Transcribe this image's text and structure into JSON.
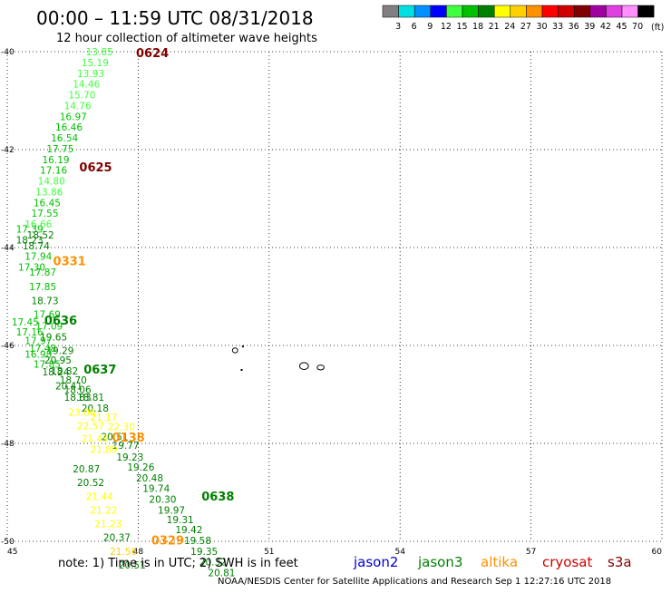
{
  "header": {
    "time_range": "00:00 – 11:59 UTC 08/31/2018",
    "subtitle": "12 hour collection of altimeter wave heights"
  },
  "legend": {
    "unit": "(ft)",
    "bins": [
      {
        "label": "3",
        "color": "#808080"
      },
      {
        "label": "6",
        "color": "#00e0e0"
      },
      {
        "label": "9",
        "color": "#0090ff"
      },
      {
        "label": "12",
        "color": "#0000ff"
      },
      {
        "label": "15",
        "color": "#40ff40"
      },
      {
        "label": "18",
        "color": "#00c000"
      },
      {
        "label": "21",
        "color": "#008000"
      },
      {
        "label": "24",
        "color": "#ffff00"
      },
      {
        "label": "27",
        "color": "#ffd000"
      },
      {
        "label": "30",
        "color": "#ff9000"
      },
      {
        "label": "33",
        "color": "#ff0000"
      },
      {
        "label": "36",
        "color": "#d00000"
      },
      {
        "label": "39",
        "color": "#800000"
      },
      {
        "label": "42",
        "color": "#a000a0"
      },
      {
        "label": "45",
        "color": "#e040e0"
      },
      {
        "label": "70",
        "color": "#ff90ff"
      },
      {
        "label": "",
        "color": "#000000"
      }
    ]
  },
  "footer": {
    "note": "note: 1) Time is in UTC; 2) SWH is in feet",
    "satellites": [
      {
        "name": "jason2",
        "color": "#0000d0"
      },
      {
        "name": "jason3",
        "color": "#008000"
      },
      {
        "name": "altika",
        "color": "#ff9000"
      },
      {
        "name": "cryosat",
        "color": "#d00000"
      },
      {
        "name": "s3a",
        "color": "#800000"
      }
    ],
    "credit": "NOAA/NESDIS Center for Satellite Applications and Research   Sep  1 12:27:16 UTC 2018"
  },
  "chart_data": {
    "type": "scatter",
    "xlim": [
      45,
      60
    ],
    "ylim": [
      -50,
      -40
    ],
    "x_ticks": [
      45,
      48,
      51,
      54,
      57,
      60
    ],
    "y_ticks": [
      -40,
      -42,
      -44,
      -46,
      -48,
      -50
    ],
    "grid": true,
    "time_labels": [
      {
        "text": "0624",
        "x": 47.95,
        "y": -40.02,
        "color": "#800000"
      },
      {
        "text": "0625",
        "x": 46.65,
        "y": -42.35,
        "color": "#800000"
      },
      {
        "text": "0331",
        "x": 46.05,
        "y": -44.27,
        "color": "#ff9000"
      },
      {
        "text": "0636",
        "x": 45.85,
        "y": -45.48,
        "color": "#008000"
      },
      {
        "text": "0637",
        "x": 46.75,
        "y": -46.48,
        "color": "#008000"
      },
      {
        "text": "0138",
        "x": 47.4,
        "y": -47.87,
        "color": "#ff9000"
      },
      {
        "text": "0638",
        "x": 49.45,
        "y": -49.07,
        "color": "#008000"
      },
      {
        "text": "0329",
        "x": 48.3,
        "y": -49.97,
        "color": "#ff9000"
      }
    ],
    "points": [
      {
        "v": "13.85",
        "x": 46.8,
        "y": -40.0,
        "color": "#40ff40"
      },
      {
        "v": "15.19",
        "x": 46.7,
        "y": -40.22,
        "color": "#40ff40"
      },
      {
        "v": "13.93",
        "x": 46.6,
        "y": -40.44,
        "color": "#40ff40"
      },
      {
        "v": "14.46",
        "x": 46.5,
        "y": -40.66,
        "color": "#40ff40"
      },
      {
        "v": "15.70",
        "x": 46.4,
        "y": -40.88,
        "color": "#40ff40"
      },
      {
        "v": "14.76",
        "x": 46.3,
        "y": -41.1,
        "color": "#40ff40"
      },
      {
        "v": "16.97",
        "x": 46.2,
        "y": -41.32,
        "color": "#00c000"
      },
      {
        "v": "16.46",
        "x": 46.1,
        "y": -41.54,
        "color": "#00c000"
      },
      {
        "v": "16.54",
        "x": 46.0,
        "y": -41.76,
        "color": "#00c000"
      },
      {
        "v": "17.75",
        "x": 45.9,
        "y": -41.98,
        "color": "#00c000"
      },
      {
        "v": "16.19",
        "x": 45.8,
        "y": -42.2,
        "color": "#00c000"
      },
      {
        "v": "17.16",
        "x": 45.75,
        "y": -42.42,
        "color": "#00c000"
      },
      {
        "v": "14.80",
        "x": 45.7,
        "y": -42.64,
        "color": "#40ff40"
      },
      {
        "v": "13.86",
        "x": 45.65,
        "y": -42.86,
        "color": "#40ff40"
      },
      {
        "v": "16.45",
        "x": 45.6,
        "y": -43.08,
        "color": "#00c000"
      },
      {
        "v": "17.55",
        "x": 45.55,
        "y": -43.3,
        "color": "#00c000"
      },
      {
        "v": "16.66",
        "x": 45.4,
        "y": -43.52,
        "color": "#40ff40"
      },
      {
        "v": "17.39",
        "x": 45.2,
        "y": -43.62,
        "color": "#00c000"
      },
      {
        "v": "18.52",
        "x": 45.45,
        "y": -43.74,
        "color": "#008000"
      },
      {
        "v": "18.23",
        "x": 45.2,
        "y": -43.84,
        "color": "#008000"
      },
      {
        "v": "18.74",
        "x": 45.35,
        "y": -43.96,
        "color": "#008000"
      },
      {
        "v": "17.94",
        "x": 45.4,
        "y": -44.18,
        "color": "#00c000"
      },
      {
        "v": "17.30",
        "x": 45.25,
        "y": -44.4,
        "color": "#00c000"
      },
      {
        "v": "17.87",
        "x": 45.5,
        "y": -44.5,
        "color": "#00c000"
      },
      {
        "v": "17.85",
        "x": 45.5,
        "y": -44.8,
        "color": "#00c000"
      },
      {
        "v": "18.73",
        "x": 45.55,
        "y": -45.08,
        "color": "#008000"
      },
      {
        "v": "17.69",
        "x": 45.6,
        "y": -45.36,
        "color": "#00c000"
      },
      {
        "v": "17.45",
        "x": 45.1,
        "y": -45.52,
        "color": "#00c000"
      },
      {
        "v": "17.09",
        "x": 45.65,
        "y": -45.6,
        "color": "#00c000"
      },
      {
        "v": "17.16",
        "x": 45.2,
        "y": -45.72,
        "color": "#00c000"
      },
      {
        "v": "19.65",
        "x": 45.75,
        "y": -45.82,
        "color": "#008000"
      },
      {
        "v": "17.97",
        "x": 45.4,
        "y": -45.9,
        "color": "#00c000"
      },
      {
        "v": "17.48",
        "x": 45.5,
        "y": -46.06,
        "color": "#00c000"
      },
      {
        "v": "19.29",
        "x": 45.9,
        "y": -46.1,
        "color": "#008000"
      },
      {
        "v": "16.98",
        "x": 45.4,
        "y": -46.18,
        "color": "#00c000"
      },
      {
        "v": "20.95",
        "x": 45.85,
        "y": -46.3,
        "color": "#008000"
      },
      {
        "v": "17.85",
        "x": 45.6,
        "y": -46.38,
        "color": "#00c000"
      },
      {
        "v": "18.82",
        "x": 46.0,
        "y": -46.52,
        "color": "#008000"
      },
      {
        "v": "18.24",
        "x": 45.8,
        "y": -46.54,
        "color": "#008000"
      },
      {
        "v": "18.70",
        "x": 46.2,
        "y": -46.7,
        "color": "#008000"
      },
      {
        "v": "20.41",
        "x": 46.1,
        "y": -46.82,
        "color": "#008000"
      },
      {
        "v": "18.06",
        "x": 46.3,
        "y": -46.9,
        "color": "#008000"
      },
      {
        "v": "18.83",
        "x": 46.3,
        "y": -47.06,
        "color": "#008000"
      },
      {
        "v": "18.81",
        "x": 46.6,
        "y": -47.06,
        "color": "#008000"
      },
      {
        "v": "20.18",
        "x": 46.7,
        "y": -47.28,
        "color": "#008000"
      },
      {
        "v": "23.06",
        "x": 46.4,
        "y": -47.36,
        "color": "#ffff00"
      },
      {
        "v": "21.17",
        "x": 46.9,
        "y": -47.46,
        "color": "#ffff00"
      },
      {
        "v": "22.57",
        "x": 46.6,
        "y": -47.64,
        "color": "#ffff00"
      },
      {
        "v": "22.30",
        "x": 47.3,
        "y": -47.66,
        "color": "#ffff00"
      },
      {
        "v": "20.51",
        "x": 47.15,
        "y": -47.86,
        "color": "#008000"
      },
      {
        "v": "21.49",
        "x": 46.7,
        "y": -47.9,
        "color": "#ffff00"
      },
      {
        "v": "19.77",
        "x": 47.4,
        "y": -48.04,
        "color": "#008000"
      },
      {
        "v": "21.89",
        "x": 46.9,
        "y": -48.12,
        "color": "#ffff00"
      },
      {
        "v": "19.23",
        "x": 47.5,
        "y": -48.28,
        "color": "#008000"
      },
      {
        "v": "20.87",
        "x": 46.5,
        "y": -48.52,
        "color": "#008000"
      },
      {
        "v": "19.26",
        "x": 47.75,
        "y": -48.48,
        "color": "#008000"
      },
      {
        "v": "20.48",
        "x": 47.95,
        "y": -48.7,
        "color": "#008000"
      },
      {
        "v": "20.52",
        "x": 46.6,
        "y": -48.8,
        "color": "#008000"
      },
      {
        "v": "19.74",
        "x": 48.1,
        "y": -48.92,
        "color": "#008000"
      },
      {
        "v": "20.30",
        "x": 48.25,
        "y": -49.14,
        "color": "#008000"
      },
      {
        "v": "21.44",
        "x": 46.8,
        "y": -49.08,
        "color": "#ffff00"
      },
      {
        "v": "19.97",
        "x": 48.45,
        "y": -49.36,
        "color": "#008000"
      },
      {
        "v": "21.22",
        "x": 46.9,
        "y": -49.36,
        "color": "#ffff00"
      },
      {
        "v": "19.31",
        "x": 48.65,
        "y": -49.56,
        "color": "#008000"
      },
      {
        "v": "19.42",
        "x": 48.85,
        "y": -49.76,
        "color": "#008000"
      },
      {
        "v": "21.23",
        "x": 47.0,
        "y": -49.64,
        "color": "#ffff00"
      },
      {
        "v": "19.58",
        "x": 49.05,
        "y": -49.98,
        "color": "#008000"
      },
      {
        "v": "20.37",
        "x": 47.2,
        "y": -49.92,
        "color": "#008000"
      },
      {
        "v": "19.35",
        "x": 49.2,
        "y": -50.2,
        "color": "#008000"
      },
      {
        "v": "21.56",
        "x": 47.35,
        "y": -50.2,
        "color": "#ffd000"
      },
      {
        "v": "20.32",
        "x": 49.4,
        "y": -50.42,
        "color": "#008000"
      },
      {
        "v": "20.81",
        "x": 49.6,
        "y": -50.64,
        "color": "#008000"
      },
      {
        "v": "20.51",
        "x": 47.55,
        "y": -50.48,
        "color": "#008000"
      }
    ],
    "islands": [
      {
        "type": "ellipse",
        "x": 50.22,
        "y": -46.1,
        "rx": 0.06,
        "ry": 0.05
      },
      {
        "type": "dot",
        "x": 50.4,
        "y": -46.02
      },
      {
        "type": "dot",
        "x": 50.37,
        "y": -46.5
      },
      {
        "type": "ellipse",
        "x": 51.8,
        "y": -46.42,
        "rx": 0.1,
        "ry": 0.07
      },
      {
        "type": "ellipse",
        "x": 52.18,
        "y": -46.45,
        "rx": 0.08,
        "ry": 0.05
      }
    ]
  }
}
